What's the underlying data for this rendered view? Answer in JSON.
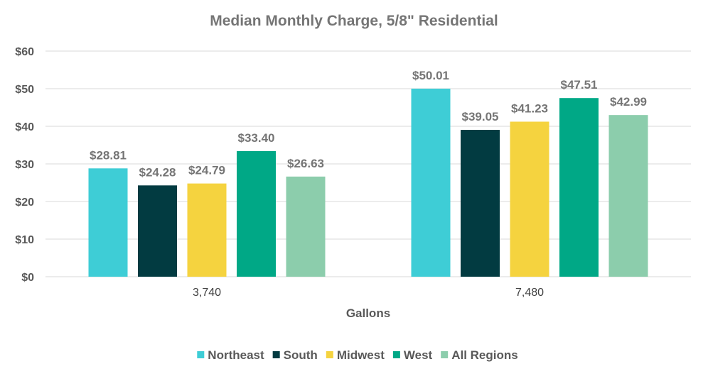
{
  "chart_data": {
    "type": "bar",
    "title": "Median Monthly Charge, 5/8\" Residential",
    "xlabel": "Gallons",
    "ylabel": "",
    "categories": [
      "3,740",
      "7,480"
    ],
    "ylim": [
      0,
      60
    ],
    "yticks": [
      0,
      10,
      20,
      30,
      40,
      50,
      60
    ],
    "ytick_labels": [
      "$0",
      "$10",
      "$20",
      "$30",
      "$40",
      "$50",
      "$60"
    ],
    "grid": true,
    "legend_position": "bottom",
    "series": [
      {
        "name": "Northeast",
        "color": "#3ecdd6",
        "values": [
          28.81,
          50.01
        ],
        "labels": [
          "$28.81",
          "$50.01"
        ]
      },
      {
        "name": "South",
        "color": "#023b41",
        "values": [
          24.28,
          39.05
        ],
        "labels": [
          "$24.28",
          "$39.05"
        ]
      },
      {
        "name": "Midwest",
        "color": "#f5d33f",
        "values": [
          24.79,
          41.23
        ],
        "labels": [
          "$24.79",
          "$41.23"
        ]
      },
      {
        "name": "West",
        "color": "#00a886",
        "values": [
          33.4,
          47.51
        ],
        "labels": [
          "$33.40",
          "$47.51"
        ]
      },
      {
        "name": "All Regions",
        "color": "#8ccdac",
        "values": [
          26.63,
          42.99
        ],
        "labels": [
          "$26.63",
          "$42.99"
        ]
      }
    ]
  }
}
